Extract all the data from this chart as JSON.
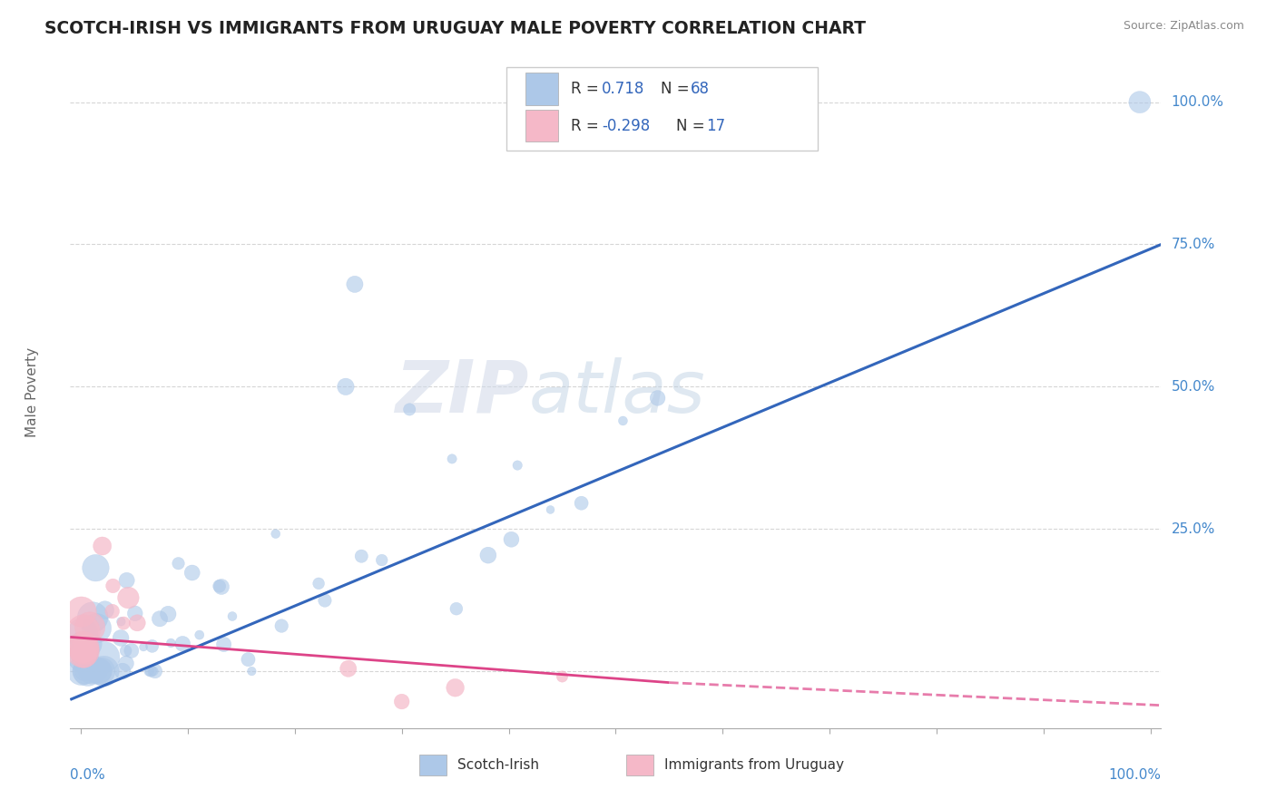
{
  "title": "SCOTCH-IRISH VS IMMIGRANTS FROM URUGUAY MALE POVERTY CORRELATION CHART",
  "source": "Source: ZipAtlas.com",
  "ylabel": "Male Poverty",
  "watermark": "ZIPatlas",
  "series1_color": "#adc8e8",
  "series1_line_color": "#3366bb",
  "series2_color": "#f5b8c8",
  "series2_line_color": "#dd4488",
  "ylabel_color": "#666666",
  "title_color": "#222222",
  "right_label_color": "#4488cc",
  "grid_color": "#cccccc",
  "legend_text_color": "#3366bb",
  "legend_r1_label": "R =",
  "legend_r1_val": "0.718",
  "legend_n1_label": "N =",
  "legend_n1_val": "68",
  "legend_r2_label": "R =",
  "legend_r2_val": "-0.298",
  "legend_n2_label": "N =",
  "legend_n2_val": "17",
  "bottom_label1": "Scotch-Irish",
  "bottom_label2": "Immigrants from Uruguay"
}
